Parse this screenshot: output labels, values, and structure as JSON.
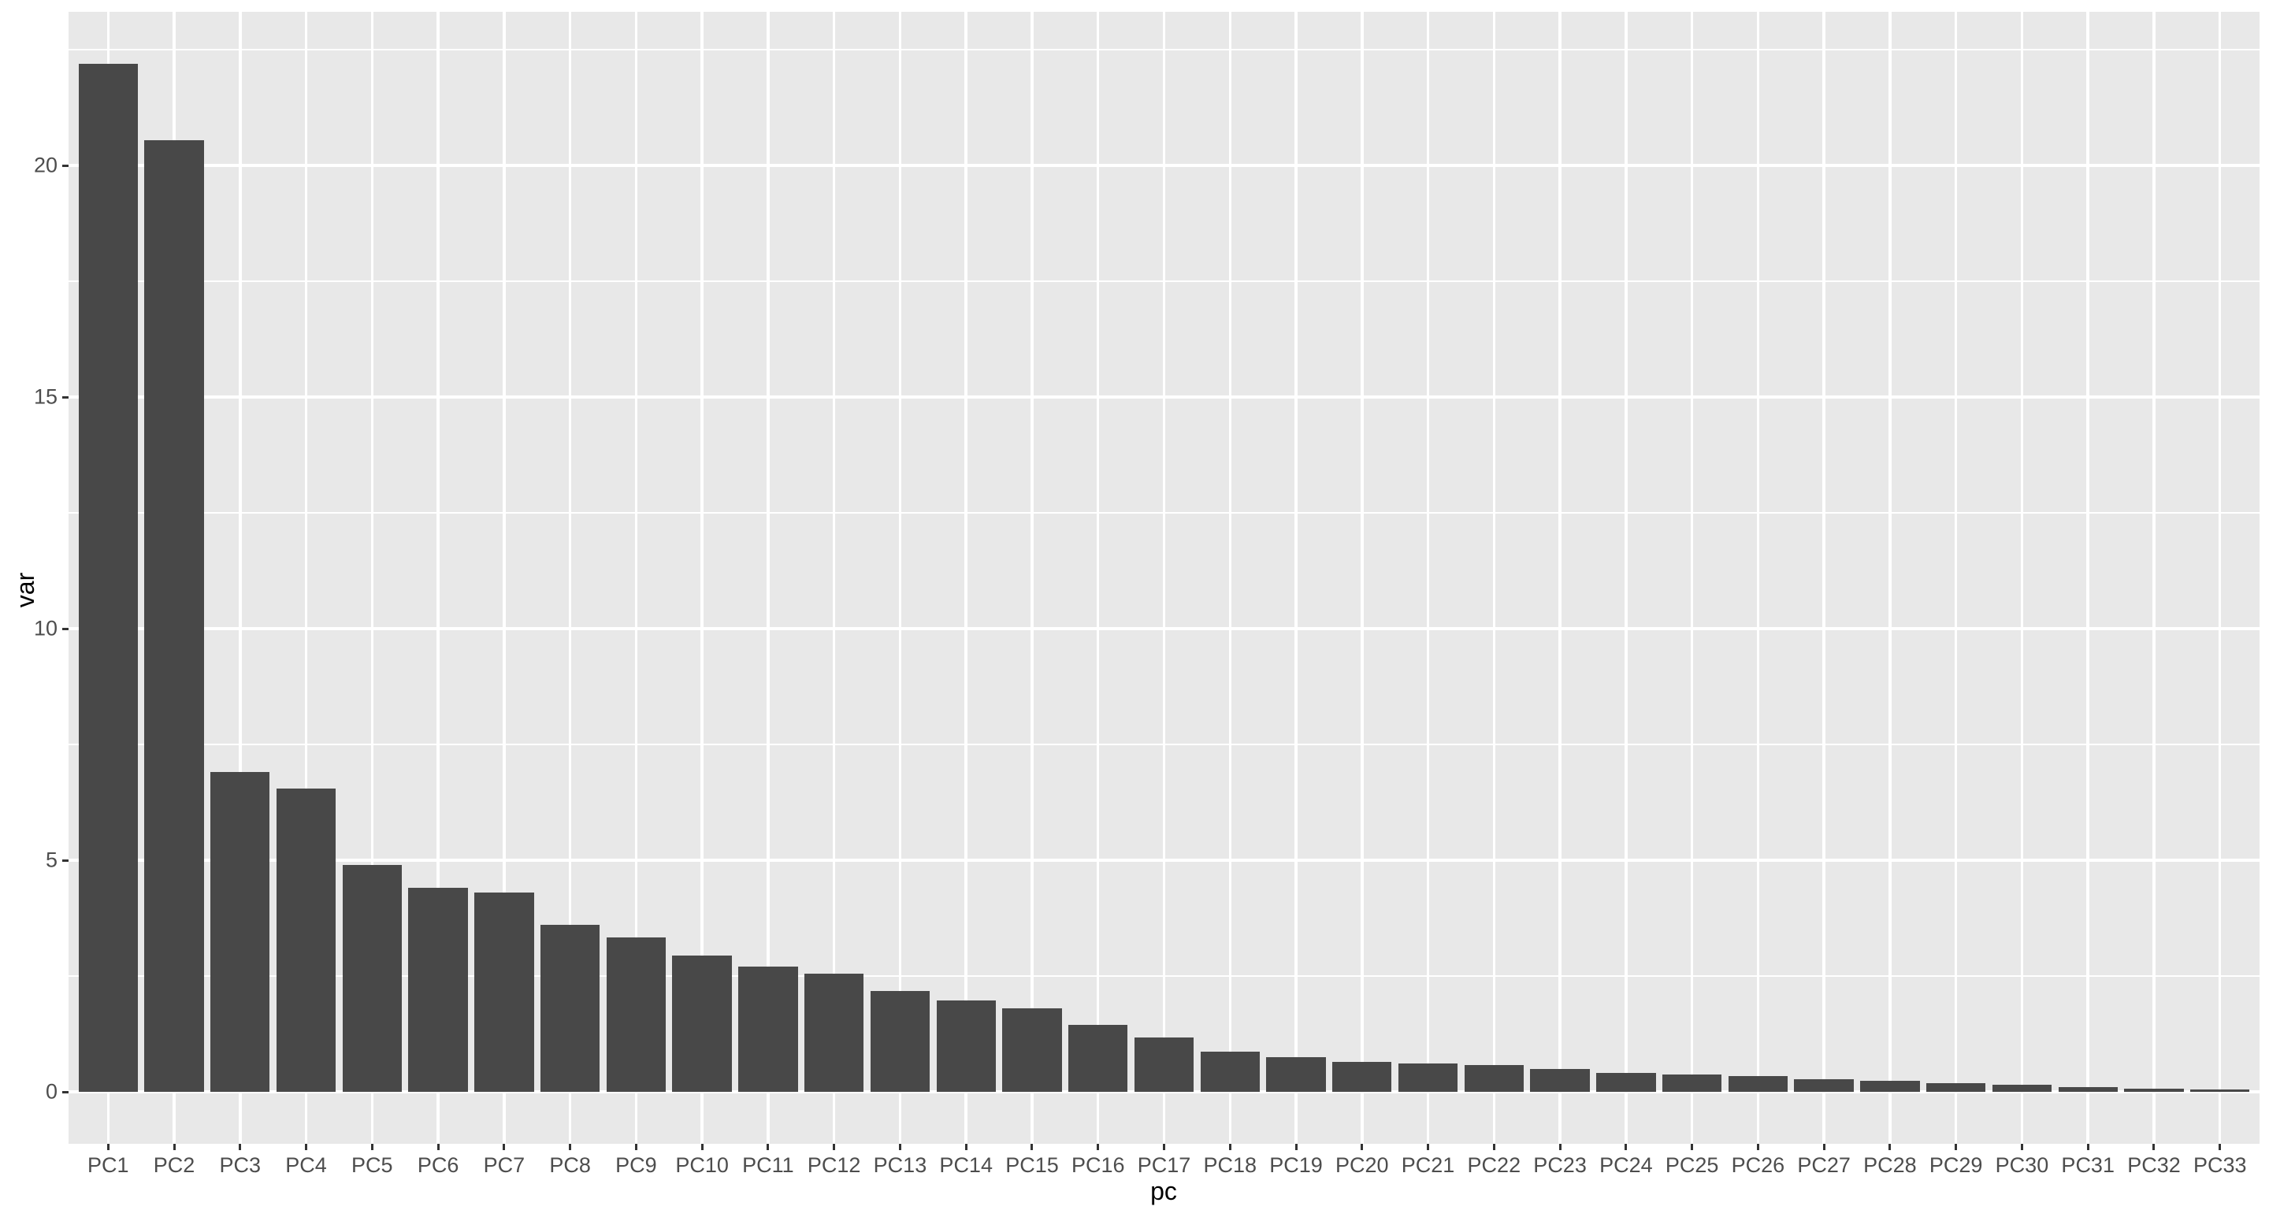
{
  "chart_data": {
    "type": "bar",
    "title": "",
    "xlabel": "pc",
    "ylabel": "var",
    "categories": [
      "PC1",
      "PC2",
      "PC3",
      "PC4",
      "PC5",
      "PC6",
      "PC7",
      "PC8",
      "PC9",
      "PC10",
      "PC11",
      "PC12",
      "PC13",
      "PC14",
      "PC15",
      "PC16",
      "PC17",
      "PC18",
      "PC19",
      "PC20",
      "PC21",
      "PC22",
      "PC23",
      "PC24",
      "PC25",
      "PC26",
      "PC27",
      "PC28",
      "PC29",
      "PC30",
      "PC31",
      "PC32",
      "PC33"
    ],
    "values": [
      22.2,
      20.55,
      6.9,
      6.55,
      4.9,
      4.4,
      4.3,
      3.6,
      3.33,
      2.95,
      2.7,
      2.55,
      2.17,
      1.98,
      1.8,
      1.45,
      1.17,
      0.86,
      0.75,
      0.65,
      0.61,
      0.57,
      0.5,
      0.4,
      0.37,
      0.34,
      0.27,
      0.23,
      0.18,
      0.16,
      0.1,
      0.06,
      0.05
    ],
    "y_ticks": [
      0,
      5,
      10,
      15,
      20
    ],
    "y_tick_labels": [
      "0",
      "5",
      "10",
      "15",
      "20"
    ],
    "y_minor_ticks": [
      2.5,
      7.5,
      12.5,
      17.5,
      22.5
    ],
    "ylim": [
      -1.12,
      23.32
    ],
    "grid": "major-and-minor-horizontal, major-vertical-at-category-centers",
    "legend": "none",
    "style": {
      "bar_fill": "#484848",
      "panel_background": "#E8E8E8",
      "gridline_color": "#FFFFFF",
      "axis_text_color": "#4D4D4D",
      "axis_title_color": "#000000",
      "tick_mark_color": "#333333",
      "page_background": "#FFFFFF"
    }
  }
}
